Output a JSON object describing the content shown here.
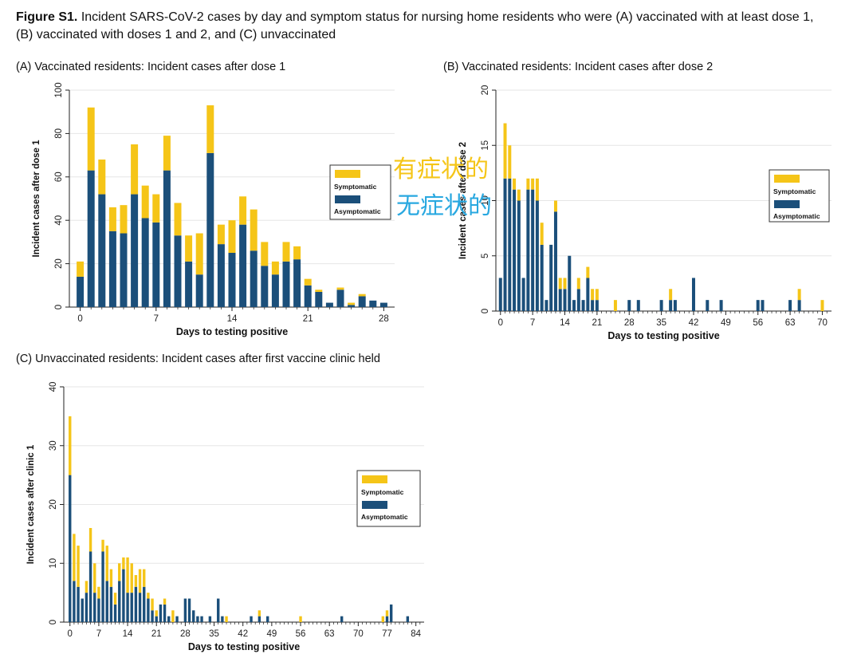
{
  "figure": {
    "label": "Figure S1.",
    "caption": "Incident SARS-CoV-2 cases by day and symptom status for nursing home residents who were (A) vaccinated with at least dose 1, (B) vaccinated with doses 1 and 2, and (C) unvaccinated"
  },
  "colors": {
    "symptomatic": "#f5c518",
    "asymptomatic": "#1b4f7a",
    "grid": "#e6e6e6",
    "axis": "#222222",
    "annotation_symptomatic": "#f5c518",
    "annotation_asymptomatic": "#29a8e0"
  },
  "annotations": {
    "symptomatic": "有症状的",
    "asymptomatic": "无症状的"
  },
  "chart_data": [
    {
      "type": "bar",
      "stacked": true,
      "title": "(A) Vaccinated residents:  Incident cases after dose 1",
      "xlabel": "Days to testing positive",
      "ylabel": "Incident cases after dose 1",
      "ylim": [
        0,
        100
      ],
      "yticks": [
        0,
        20,
        40,
        60,
        80,
        100
      ],
      "xlim": [
        -1,
        29
      ],
      "xticks": [
        0,
        7,
        14,
        21,
        28
      ],
      "legend_position": "right",
      "legend": [
        "Symptomatic",
        "Asymptomatic"
      ],
      "x": [
        0,
        1,
        2,
        3,
        4,
        5,
        6,
        7,
        8,
        9,
        10,
        11,
        12,
        13,
        14,
        15,
        16,
        17,
        18,
        19,
        20,
        21,
        22,
        23,
        24,
        25,
        26,
        27,
        28
      ],
      "series": [
        {
          "name": "Asymptomatic",
          "values": [
            14,
            63,
            52,
            35,
            34,
            52,
            41,
            39,
            63,
            33,
            21,
            15,
            71,
            29,
            25,
            38,
            26,
            19,
            15,
            21,
            22,
            10,
            7,
            2,
            8,
            1,
            5,
            3,
            2
          ]
        },
        {
          "name": "Symptomatic",
          "values": [
            7,
            29,
            16,
            11,
            13,
            23,
            15,
            13,
            16,
            15,
            12,
            19,
            22,
            9,
            15,
            13,
            19,
            11,
            6,
            9,
            6,
            3,
            1,
            0,
            1,
            1,
            1,
            0,
            0
          ]
        }
      ]
    },
    {
      "type": "bar",
      "stacked": true,
      "title": "(B) Vaccinated residents: Incident cases after dose 2",
      "xlabel": "Days to testing positive",
      "ylabel": "Incident cases after dose 2",
      "ylim": [
        0,
        20
      ],
      "yticks": [
        0,
        5,
        10,
        15,
        20
      ],
      "xlim": [
        -1,
        72
      ],
      "xticks": [
        0,
        7,
        14,
        21,
        28,
        35,
        42,
        49,
        56,
        63,
        70
      ],
      "legend_position": "right",
      "legend": [
        "Symptomatic",
        "Asymptomatic"
      ],
      "x": [
        0,
        1,
        2,
        3,
        4,
        5,
        6,
        7,
        8,
        9,
        10,
        11,
        12,
        13,
        14,
        15,
        16,
        17,
        18,
        19,
        20,
        21,
        22,
        23,
        24,
        25,
        26,
        27,
        28,
        29,
        30,
        31,
        32,
        33,
        34,
        35,
        36,
        37,
        38,
        39,
        40,
        41,
        42,
        43,
        44,
        45,
        46,
        47,
        48,
        49,
        50,
        51,
        52,
        53,
        54,
        55,
        56,
        57,
        58,
        59,
        60,
        61,
        62,
        63,
        64,
        65,
        66,
        67,
        68,
        69,
        70
      ],
      "series": [
        {
          "name": "Asymptomatic",
          "values": [
            3,
            12,
            12,
            11,
            10,
            3,
            11,
            11,
            10,
            6,
            1,
            6,
            9,
            2,
            2,
            5,
            1,
            2,
            1,
            3,
            1,
            1,
            0,
            0,
            0,
            0,
            0,
            0,
            1,
            0,
            1,
            0,
            0,
            0,
            0,
            1,
            0,
            1,
            1,
            0,
            0,
            0,
            3,
            0,
            0,
            1,
            0,
            0,
            1,
            0,
            0,
            0,
            0,
            0,
            0,
            0,
            1,
            1,
            0,
            0,
            0,
            0,
            0,
            1,
            0,
            1,
            0,
            0,
            0,
            0,
            0
          ]
        },
        {
          "name": "Symptomatic",
          "values": [
            0,
            5,
            3,
            1,
            1,
            0,
            1,
            1,
            2,
            2,
            0,
            0,
            1,
            1,
            1,
            0,
            0,
            1,
            0,
            1,
            1,
            1,
            0,
            0,
            0,
            1,
            0,
            0,
            0,
            0,
            0,
            0,
            0,
            0,
            0,
            0,
            0,
            1,
            0,
            0,
            0,
            0,
            0,
            0,
            0,
            0,
            0,
            0,
            0,
            0,
            0,
            0,
            0,
            0,
            0,
            0,
            0,
            0,
            0,
            0,
            0,
            0,
            0,
            0,
            0,
            1,
            0,
            0,
            0,
            0,
            1
          ]
        }
      ]
    },
    {
      "type": "bar",
      "stacked": true,
      "title": "(C) Unvaccinated residents: Incident cases after first vaccine clinic held",
      "xlabel": "Days to testing positive",
      "ylabel": "Incident cases after clinic 1",
      "ylim": [
        0,
        40
      ],
      "yticks": [
        0,
        10,
        20,
        30,
        40
      ],
      "xlim": [
        -1.5,
        86
      ],
      "xticks": [
        0,
        7,
        14,
        21,
        28,
        35,
        42,
        49,
        56,
        63,
        70,
        77,
        84
      ],
      "legend_position": "right",
      "legend": [
        "Symptomatic",
        "Asymptomatic"
      ],
      "x": [
        0,
        1,
        2,
        3,
        4,
        5,
        6,
        7,
        8,
        9,
        10,
        11,
        12,
        13,
        14,
        15,
        16,
        17,
        18,
        19,
        20,
        21,
        22,
        23,
        24,
        25,
        26,
        27,
        28,
        29,
        30,
        31,
        32,
        33,
        34,
        35,
        36,
        37,
        38,
        39,
        40,
        41,
        42,
        43,
        44,
        45,
        46,
        47,
        48,
        49,
        50,
        51,
        52,
        53,
        54,
        55,
        56,
        57,
        58,
        59,
        60,
        61,
        62,
        63,
        64,
        65,
        66,
        67,
        68,
        69,
        70,
        71,
        72,
        73,
        74,
        75,
        76,
        77,
        78,
        79,
        80,
        81,
        82,
        83,
        84
      ],
      "series": [
        {
          "name": "Asymptomatic",
          "values": [
            25,
            7,
            6,
            4,
            5,
            12,
            5,
            4,
            12,
            7,
            6,
            3,
            7,
            9,
            5,
            5,
            6,
            5,
            6,
            4,
            2,
            1,
            3,
            3,
            1,
            0,
            1,
            0,
            4,
            4,
            2,
            1,
            1,
            0,
            1,
            0,
            4,
            1,
            0,
            0,
            0,
            0,
            0,
            0,
            1,
            0,
            1,
            0,
            1,
            0,
            0,
            0,
            0,
            0,
            0,
            0,
            0,
            0,
            0,
            0,
            0,
            0,
            0,
            0,
            0,
            0,
            1,
            0,
            0,
            0,
            0,
            0,
            0,
            0,
            0,
            0,
            0,
            1,
            3,
            0,
            0,
            0,
            1,
            0,
            0
          ]
        },
        {
          "name": "Symptomatic",
          "values": [
            10,
            8,
            7,
            0,
            2,
            4,
            5,
            2,
            2,
            6,
            3,
            2,
            3,
            2,
            6,
            5,
            2,
            4,
            3,
            1,
            2,
            1,
            0,
            1,
            0,
            2,
            0,
            0,
            0,
            0,
            0,
            0,
            0,
            0,
            0,
            0,
            0,
            0,
            1,
            0,
            0,
            0,
            0,
            0,
            0,
            0,
            1,
            0,
            0,
            0,
            0,
            0,
            0,
            0,
            0,
            0,
            1,
            0,
            0,
            0,
            0,
            0,
            0,
            0,
            0,
            0,
            0,
            0,
            0,
            0,
            0,
            0,
            0,
            0,
            0,
            0,
            1,
            1,
            0,
            0,
            0,
            0,
            0,
            0,
            0
          ]
        }
      ]
    }
  ]
}
